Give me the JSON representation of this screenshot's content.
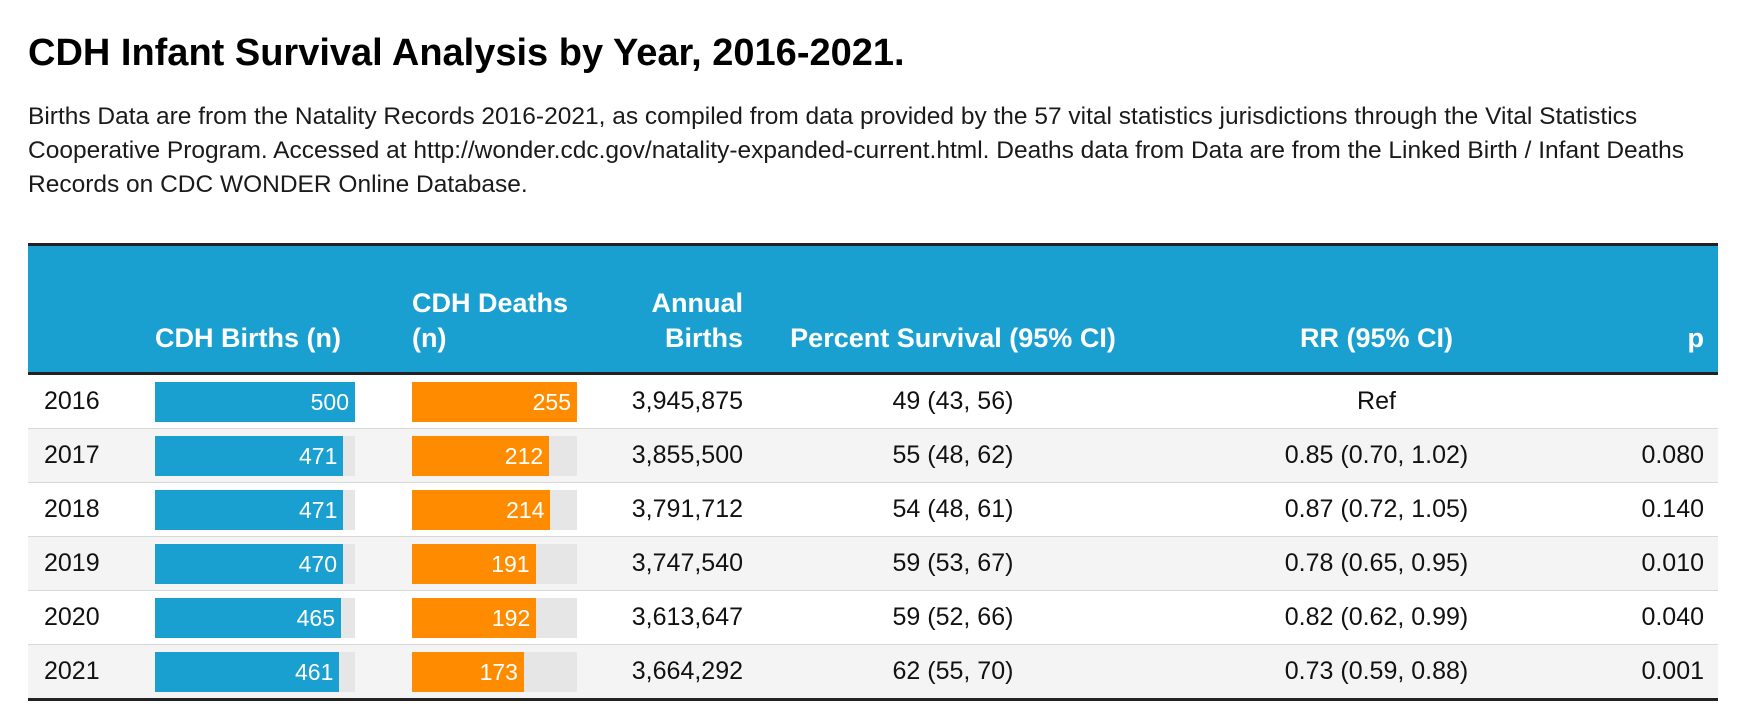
{
  "title": "CDH Infant Survival Analysis by Year, 2016-2021.",
  "subtitle": "Births Data are from the Natality Records 2016-2021, as compiled from data provided by the 57 vital statistics jurisdictions through the Vital Statistics Cooperative Program. Accessed at http://wonder.cdc.gov/natality-expanded-current.html. Deaths data from Data are from the Linked Birth / Infant Deaths Records on CDC WONDER Online Database.",
  "colors": {
    "header_bg": "#1aa0d0",
    "births_bar": "#1aa0d0",
    "deaths_bar": "#ff8c00",
    "bar_track": "#e6e6e6"
  },
  "columns": {
    "year": "",
    "cdh_births": "CDH Births (n)",
    "cdh_deaths": "CDH Deaths (n)",
    "annual_births": "Annual Births",
    "percent_survival": "Percent Survival (95% CI)",
    "rr": "RR (95% CI)",
    "p": "p"
  },
  "chart_data": {
    "type": "table",
    "title": "CDH Infant Survival Analysis by Year, 2016-2021.",
    "rows": [
      {
        "year": "2016",
        "cdh_births": 500,
        "cdh_deaths": 255,
        "annual_births": "3,945,875",
        "percent_survival": "49 (43, 56)",
        "rr": "Ref",
        "p": ""
      },
      {
        "year": "2017",
        "cdh_births": 471,
        "cdh_deaths": 212,
        "annual_births": "3,855,500",
        "percent_survival": "55 (48, 62)",
        "rr": "0.85 (0.70, 1.02)",
        "p": "0.080"
      },
      {
        "year": "2018",
        "cdh_births": 471,
        "cdh_deaths": 214,
        "annual_births": "3,791,712",
        "percent_survival": "54 (48, 61)",
        "rr": "0.87 (0.72, 1.05)",
        "p": "0.140"
      },
      {
        "year": "2019",
        "cdh_births": 470,
        "cdh_deaths": 191,
        "annual_births": "3,747,540",
        "percent_survival": "59 (53, 67)",
        "rr": "0.78 (0.65, 0.95)",
        "p": "0.010"
      },
      {
        "year": "2020",
        "cdh_births": 465,
        "cdh_deaths": 192,
        "annual_births": "3,613,647",
        "percent_survival": "59 (52, 66)",
        "rr": "0.82 (0.62, 0.99)",
        "p": "0.040"
      },
      {
        "year": "2021",
        "cdh_births": 461,
        "cdh_deaths": 173,
        "annual_births": "3,664,292",
        "percent_survival": "62 (55, 70)",
        "rr": "0.73 (0.59, 0.88)",
        "p": "0.001"
      }
    ],
    "bar_max": {
      "cdh_births": 500,
      "cdh_deaths": 255
    }
  }
}
